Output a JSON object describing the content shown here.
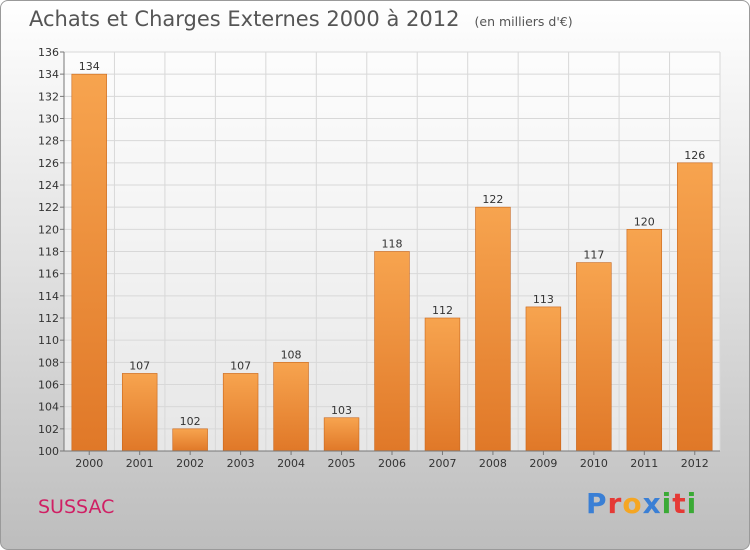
{
  "header": {
    "title": "Achats et Charges Externes 2000 à 2012",
    "unit": "(en milliers d'€)"
  },
  "footer": {
    "commune": "SUSSAC",
    "brand": "Proxiti",
    "brand_colors": [
      "#3a7fd5",
      "#e53935",
      "#f5a623",
      "#3a7fd5",
      "#3aaa35",
      "#e53935",
      "#3aaa35"
    ]
  },
  "colors": {
    "bar_top": "#f7a44f",
    "bar_bottom": "#e07828",
    "bar_edge": "#c8661c",
    "title": "#555555",
    "commune": "#d01f64"
  },
  "chart_data": {
    "type": "bar",
    "categories": [
      "2000",
      "2001",
      "2002",
      "2003",
      "2004",
      "2005",
      "2006",
      "2007",
      "2008",
      "2009",
      "2010",
      "2011",
      "2012"
    ],
    "values": [
      134,
      107,
      102,
      107,
      108,
      103,
      118,
      112,
      122,
      113,
      117,
      120,
      126
    ],
    "ylim": [
      100,
      136
    ],
    "ytick_step": 2,
    "grid": true,
    "legend": "none"
  }
}
